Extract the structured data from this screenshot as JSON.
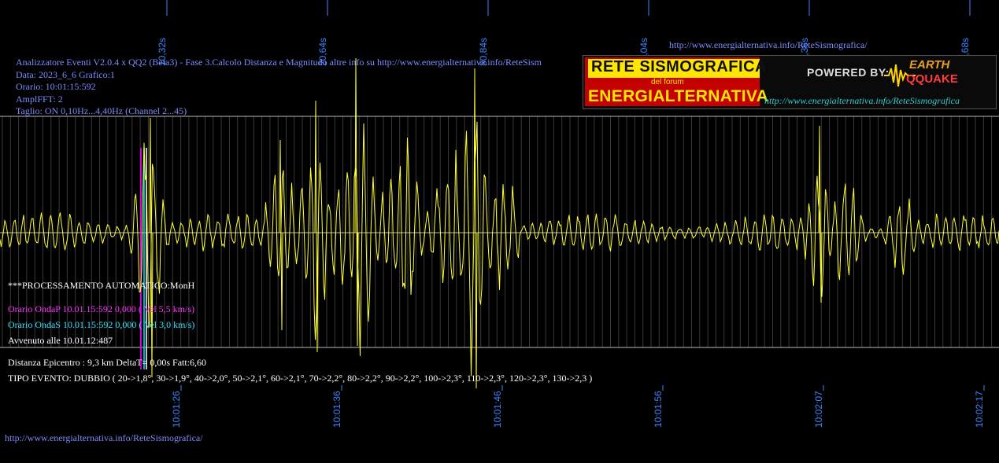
{
  "chart_data": {
    "type": "line",
    "title": "",
    "xlabel": "",
    "ylabel": "",
    "series": [
      {
        "values": []
      }
    ],
    "top_axis_ticks": [
      "10,32s",
      "20,64s",
      "30,84s",
      "41,04s",
      "51,36s",
      "61,68s"
    ],
    "bottom_axis_ticks": [
      "10:01:26",
      "10:01:36",
      "10:01:46",
      "10:01:56",
      "10:02:07",
      "10:02:17"
    ],
    "grid": true,
    "colors": {
      "trace": "#ffff33",
      "grid": "#bbbbbb",
      "axis_text": "#3d86ff"
    },
    "p_marker_color": "#ff00ff",
    "s_marker_color": "#00e5ff",
    "event_marker_color": "#ffffff"
  },
  "header": {
    "line1": "Analizzatore Eventi V2.0.4 x QQ2 (Beta3) - Fase 3.Calcolo Distanza e Magnitudo altre info su http://www.energialternativa.info/ReteSism",
    "line2": "Data: 2023_6_6 Grafico:1",
    "line3": "Orario: 10:01:15:592",
    "line4": "AmplFFT: 2",
    "line5": "Taglio: ON 0,10Hz...4,40Hz       (Channel 2...45)"
  },
  "processing": {
    "auto": "***PROCESSAMENTO AUTOMATICO:MonH",
    "p_wave": "Orario OndaP 10.01.15:592  0,000 ( Vel 5,5 km/s)",
    "s_wave": "Orario OndaS 10.01.15:592  0,000 ( Vel 3,0 km/s)",
    "occurred": "Avvenuto alle 10.01.12:487"
  },
  "result": {
    "distance": "Distanza Epicentro : 9,3 km DeltaT= 0,00s  Fatt:6,60",
    "event_type": "TIPO EVENTO: DUBBIO ( 20->1,8°, 30->1,9°, 40->2,0°, 50->2,1°, 60->2,1°, 70->2,2°, 80->2,2°, 90->2,2°, 100->2,3°, 110->2,3°, 120->2,3°, 130->2,3 )"
  },
  "links": {
    "top": "http://www.energialternativa.info/ReteSismografica/",
    "bottom": "http://www.energialternativa.info/ReteSismografica/"
  },
  "banner": {
    "title": "RETE SISMOGRAFICA",
    "subtitle": "del forum",
    "name": "ENERGIALTERNATIVA",
    "powered": "POWERED BY:",
    "brand_top": "EARTH",
    "brand_bottom": "QQUAKE",
    "url": "http://www.energialternativa.info/ReteSismografica"
  }
}
